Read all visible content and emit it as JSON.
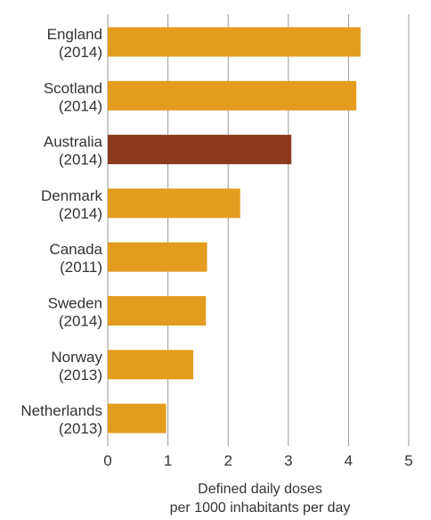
{
  "chart_data": {
    "type": "bar",
    "orientation": "horizontal",
    "title": "",
    "categories": [
      [
        "England",
        "(2014)"
      ],
      [
        "Scotland",
        "(2014)"
      ],
      [
        "Australia",
        "(2014)"
      ],
      [
        "Denmark",
        "(2014)"
      ],
      [
        "Canada",
        "(2011)"
      ],
      [
        "Sweden",
        "(2014)"
      ],
      [
        "Norway",
        "(2013)"
      ],
      [
        "Netherlands",
        "(2013)"
      ]
    ],
    "values": [
      4.2,
      4.13,
      3.05,
      2.2,
      1.65,
      1.63,
      1.42,
      0.97
    ],
    "highlight_index": 2,
    "xlabel": [
      "Defined daily doses",
      "per 1000 inhabitants per day"
    ],
    "ylabel": "",
    "xlim": [
      0,
      5
    ],
    "xticks": [
      0,
      1,
      2,
      3,
      4,
      5
    ],
    "grid": "vertical",
    "colors": {
      "bar": "#E39C1E",
      "highlight": "#8B3A1E",
      "grid": "#9a9a9a",
      "text": "#333333"
    }
  }
}
